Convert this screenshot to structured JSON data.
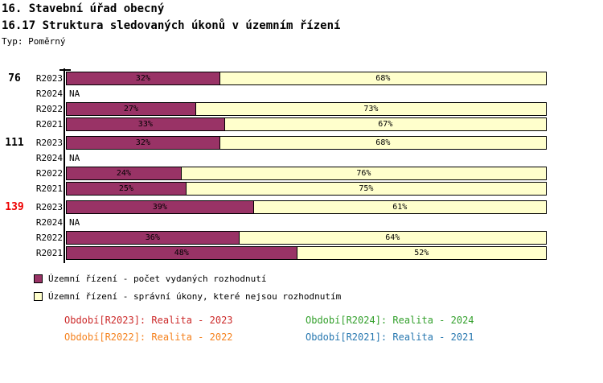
{
  "header": {
    "title": "16. Stavební úřad obecný",
    "subtitle": "16.17 Struktura sledovaných úkonů v územním řízení",
    "type_label": "Typ: Poměrný"
  },
  "chart_data": {
    "type": "bar",
    "orientation": "horizontal",
    "stacked": true,
    "unit": "%",
    "x_range": [
      0,
      100
    ],
    "na_label": "NA",
    "series_names": [
      "Územní řízení - počet vydaných rozhodnutí",
      "Územní řízení - správní úkony, které nejsou rozhodnutím"
    ],
    "series_colors": [
      "#993366",
      "#FFFFCC"
    ],
    "groups": [
      {
        "label": "76",
        "label_color": "#000000",
        "rows": [
          {
            "period": "R2023",
            "values": [
              32,
              68
            ]
          },
          {
            "period": "R2024",
            "na": true
          },
          {
            "period": "R2022",
            "values": [
              27,
              73
            ]
          },
          {
            "period": "R2021",
            "values": [
              33,
              67
            ]
          }
        ]
      },
      {
        "label": "111",
        "label_color": "#000000",
        "rows": [
          {
            "period": "R2023",
            "values": [
              32,
              68
            ]
          },
          {
            "period": "R2024",
            "na": true
          },
          {
            "period": "R2022",
            "values": [
              24,
              76
            ]
          },
          {
            "period": "R2021",
            "values": [
              25,
              75
            ]
          }
        ]
      },
      {
        "label": "139",
        "label_color": "#EE0000",
        "rows": [
          {
            "period": "R2023",
            "values": [
              39,
              61
            ]
          },
          {
            "period": "R2024",
            "na": true
          },
          {
            "period": "R2022",
            "values": [
              36,
              64
            ]
          },
          {
            "period": "R2021",
            "values": [
              48,
              52
            ]
          }
        ]
      }
    ]
  },
  "legend": {
    "items": [
      {
        "label": "Územní řízení - počet vydaných rozhodnutí",
        "color": "#993366"
      },
      {
        "label": "Územní řízení - správní úkony, které nejsou rozhodnutím",
        "color": "#FFFFCC"
      }
    ]
  },
  "footnotes": {
    "items": [
      {
        "text": "Období[R2023]: Realita - 2023",
        "color": "#CC2929"
      },
      {
        "text": "Období[R2024]: Realita - 2024",
        "color": "#33A02C"
      },
      {
        "text": "Období[R2022]: Realita - 2022",
        "color": "#F5821E"
      },
      {
        "text": "Období[R2021]: Realita - 2021",
        "color": "#2878B0"
      }
    ]
  }
}
